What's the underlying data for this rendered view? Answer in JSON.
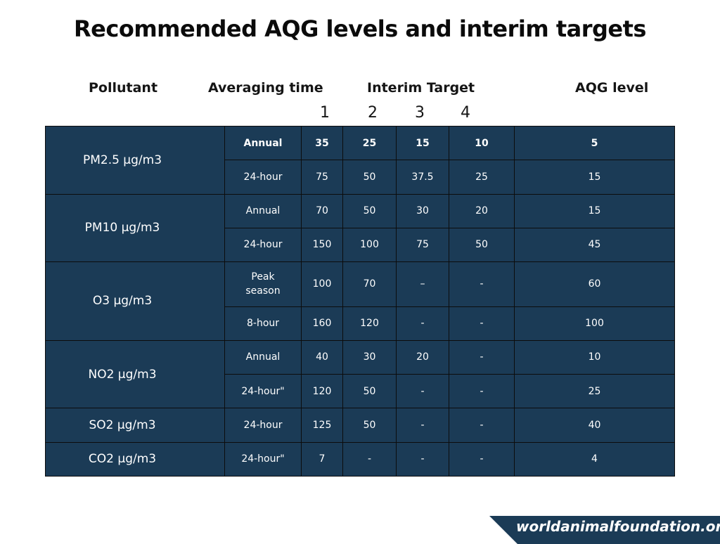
{
  "title": "Recommended AQG levels and interim targets",
  "headers": {
    "pollutant": "Pollutant",
    "averaging_time": "Averaging time",
    "interim_target": "Interim Target",
    "aqg_level": "AQG level",
    "target_numbers": [
      "1",
      "2",
      "3",
      "4"
    ]
  },
  "rows": [
    {
      "time": "Annual",
      "it": [
        "35",
        "25",
        "15",
        "10"
      ],
      "aqg": "5"
    },
    {
      "time": "24-hour",
      "it": [
        "75",
        "50",
        "37.5",
        "25"
      ],
      "aqg": "15"
    },
    {
      "time": "Annual",
      "it": [
        "70",
        "50",
        "30",
        "20"
      ],
      "aqg": "15"
    },
    {
      "time": "24-hour",
      "it": [
        "150",
        "100",
        "75",
        "50"
      ],
      "aqg": "45"
    },
    {
      "time": "Peak season",
      "it": [
        "100",
        "70",
        "–",
        "-"
      ],
      "aqg": "60"
    },
    {
      "time": "8-hour",
      "it": [
        "160",
        "120",
        "-",
        "-"
      ],
      "aqg": "100"
    },
    {
      "time": "Annual",
      "it": [
        "40",
        "30",
        "20",
        "-"
      ],
      "aqg": "10"
    },
    {
      "time": "24-hour\"",
      "it": [
        "120",
        "50",
        "-",
        "-"
      ],
      "aqg": "25"
    },
    {
      "time": "24-hour",
      "it": [
        "125",
        "50",
        "-",
        "-"
      ],
      "aqg": "40"
    },
    {
      "time": "24-hour\"",
      "it": [
        "7",
        "-",
        "-",
        "-"
      ],
      "aqg": "4"
    }
  ],
  "pollutants": [
    "PM2.5 µg/m3",
    "PM10 µg/m3",
    "O3 µg/m3",
    "NO2 µg/m3",
    "SO2 µg/m3",
    "CO2 µg/m3"
  ],
  "brand": "worldanimalfoundation.org",
  "colors": {
    "table_bg": "#1b3b56",
    "border": "#0c0c0c",
    "text_on_dark": "#ffffff"
  }
}
